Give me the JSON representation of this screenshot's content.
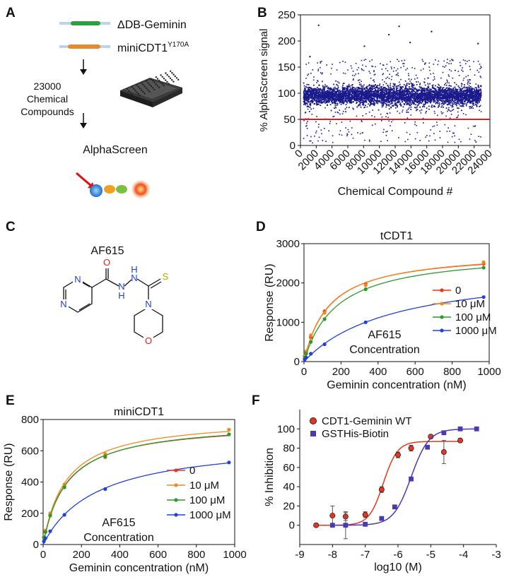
{
  "panels": {
    "A": {
      "label": "A",
      "construct1": "ΔDB-Geminin",
      "construct2_base": "miniCDT1",
      "construct2_sup": "Y170A",
      "compounds_line1": "23000",
      "compounds_line2": "Chemical",
      "compounds_line3": "Compounds",
      "assay": "AlphaScreen",
      "colors": {
        "geminin": "#2e9e3e",
        "cdt1": "#e88a2b",
        "bead_blue": "#2f86d6",
        "bead_orange": "#f0a020",
        "bead_green": "#7bc043",
        "bead_red": "#f05020",
        "arrow": "#e01010"
      }
    },
    "C": {
      "label": "C",
      "compound_name": "AF615",
      "atoms": {
        "O_carbonyl": "O",
        "NH1": "H",
        "N_hydrazide1": "N",
        "NH2": "H",
        "N_hydrazide2": "N",
        "S": "S",
        "N_morph": "N",
        "O_morph": "O",
        "N_pyr1": "N",
        "N_pyr2": "N"
      },
      "colors": {
        "oxygen": "#e02020",
        "nitrogen": "#2040d0",
        "sulfur": "#c8a000"
      }
    }
  },
  "chart_data": [
    {
      "panel": "B",
      "type": "scatter",
      "title": "",
      "xlabel": "Chemical Compound #",
      "ylabel": "% AlphaScreen signal",
      "xlim": [
        0,
        24000
      ],
      "ylim": [
        0,
        250
      ],
      "xticks": [
        "0",
        "2000",
        "4000",
        "6000",
        "8000",
        "10000",
        "12000",
        "14000",
        "16000",
        "18000",
        "20000",
        "22000",
        "24000"
      ],
      "yticks": [
        "0",
        "50",
        "100",
        "150",
        "200",
        "250"
      ],
      "threshold": 50,
      "n_points": 23000,
      "summary": "dense band of points centered near 95% (range ~75–115%), sparse outliers 0–230%",
      "outliers": [
        {
          "x": 2300,
          "y": 230
        },
        {
          "x": 8100,
          "y": 190
        },
        {
          "x": 11200,
          "y": 212
        },
        {
          "x": 12500,
          "y": 228
        },
        {
          "x": 13900,
          "y": 197
        },
        {
          "x": 16600,
          "y": 218
        },
        {
          "x": 22500,
          "y": 195
        },
        {
          "x": 1200,
          "y": 170
        },
        {
          "x": 19300,
          "y": 163
        }
      ],
      "colors": {
        "points": "#1a1a8c",
        "threshold": "#e41a1c"
      }
    },
    {
      "panel": "D",
      "type": "line",
      "title": "tCDT1",
      "xlabel": "Geminin concentration (nM)",
      "ylabel": "Response (RU)",
      "xlim": [
        0,
        1000
      ],
      "ylim": [
        0,
        3000
      ],
      "xticks": [
        "0",
        "200",
        "400",
        "600",
        "800",
        "1000"
      ],
      "yticks": [
        "0",
        "1000",
        "2000",
        "3000"
      ],
      "x": [
        4,
        12,
        37,
        111,
        333,
        970
      ],
      "series": [
        {
          "name": "0",
          "color": "#e8351e",
          "values": [
            150,
            250,
            620,
            1280,
            1980,
            2490
          ]
        },
        {
          "name": "10 μM",
          "color": "#f08a1c",
          "values": [
            160,
            260,
            670,
            1240,
            1940,
            2530
          ]
        },
        {
          "name": "100 μM",
          "color": "#2c9a2c",
          "values": [
            100,
            200,
            500,
            1080,
            1840,
            2390
          ]
        },
        {
          "name": "1000 μM",
          "color": "#2040d8",
          "values": [
            50,
            100,
            200,
            440,
            1000,
            1640
          ]
        }
      ],
      "legend_title_line1": "AF615",
      "legend_title_line2": "Concentration"
    },
    {
      "panel": "E",
      "type": "line",
      "title": "miniCDT1",
      "xlabel": "Geminin concentration (nM)",
      "ylabel": "Response (RU)",
      "xlim": [
        0,
        1000
      ],
      "ylim": [
        0,
        800
      ],
      "xticks": [
        "0",
        "200",
        "400",
        "600",
        "800",
        "1000"
      ],
      "yticks": [
        "0",
        "200",
        "400",
        "600",
        "800"
      ],
      "x": [
        4,
        12,
        37,
        111,
        324,
        970
      ],
      "series": [
        {
          "name": "0",
          "color": "#e8351e",
          "values": [
            45,
            80,
            190,
            370,
            560,
            705
          ]
        },
        {
          "name": "10 μM",
          "color": "#f08a1c",
          "values": [
            50,
            90,
            200,
            385,
            580,
            735
          ]
        },
        {
          "name": "100 μM",
          "color": "#2c9a2c",
          "values": [
            45,
            80,
            185,
            365,
            565,
            705
          ]
        },
        {
          "name": "1000 μM",
          "color": "#2040d8",
          "values": [
            20,
            40,
            85,
            190,
            355,
            525
          ]
        }
      ],
      "legend_title_line1": "AF615",
      "legend_title_line2": "Concentration"
    },
    {
      "panel": "F",
      "type": "scatter",
      "title": "",
      "xlabel": "log10 (M)",
      "ylabel": "% Inhibition",
      "xlim": [
        -9,
        -3
      ],
      "ylim": [
        -20,
        120
      ],
      "xticks": [
        "-9",
        "-8",
        "-7",
        "-6",
        "-5",
        "-4",
        "-3"
      ],
      "yticks": [
        "0",
        "20",
        "40",
        "60",
        "80",
        "100"
      ],
      "series": [
        {
          "name": "CDT1-Geminin WT",
          "color": "#e8351e",
          "marker": "circle",
          "x": [
            -8.5,
            -8.0,
            -7.6,
            -7.0,
            -6.5,
            -6.0,
            -5.6,
            -5.0,
            -4.6,
            -4.1
          ],
          "values": [
            0,
            10,
            9,
            11,
            37,
            73,
            80,
            92,
            76,
            88
          ],
          "errors": [
            0,
            10,
            4,
            3,
            3,
            3,
            3,
            2,
            12,
            2
          ],
          "fit_bottom": 0,
          "fit_top": 87,
          "fit_logIC50": -6.45,
          "fit_hill": 2.0
        },
        {
          "name": "GSTHis-Biotin",
          "color": "#4a3ab0",
          "marker": "square",
          "x": [
            -8.0,
            -7.6,
            -7.0,
            -6.5,
            -6.1,
            -5.6,
            -5.1,
            -4.6,
            -4.1,
            -3.6
          ],
          "values": [
            0,
            0,
            1,
            7,
            19,
            48,
            81,
            96,
            100,
            100
          ],
          "errors": [
            0,
            14,
            0,
            0,
            0,
            0,
            2,
            2,
            0,
            0
          ],
          "fit_bottom": 0,
          "fit_top": 100,
          "fit_logIC50": -5.6,
          "fit_hill": 1.6
        }
      ]
    }
  ]
}
